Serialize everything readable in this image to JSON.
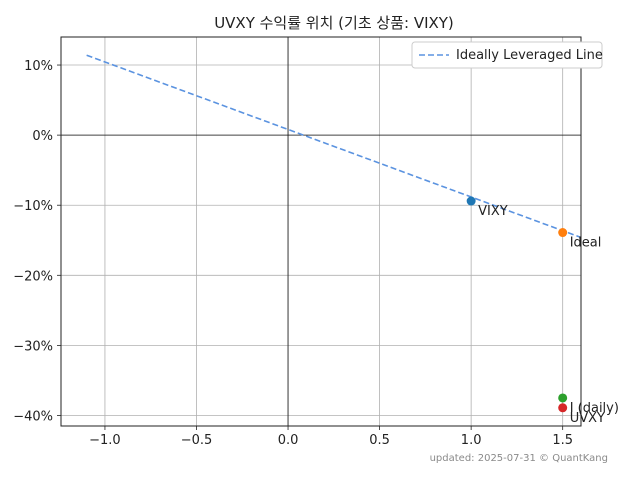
{
  "chart_data": {
    "type": "scatter",
    "title": "UVXY 수익률 위치 (기초 상품: VIXY)",
    "xlabel": "",
    "ylabel": "",
    "xlim": [
      -1.24,
      1.6
    ],
    "ylim": [
      -41.5,
      14
    ],
    "x_ticks": [
      -1.0,
      -0.5,
      0.0,
      0.5,
      1.0,
      1.5
    ],
    "x_tick_labels": [
      "−1.0",
      "−0.5",
      "0.0",
      "0.5",
      "1.0",
      "1.5"
    ],
    "y_ticks": [
      10,
      0,
      -10,
      -20,
      -30,
      -40
    ],
    "y_tick_labels": [
      "10%",
      "0%",
      "−10%",
      "−20%",
      "−30%",
      "−40%"
    ],
    "grid": true,
    "legend_position": "top-right",
    "line": {
      "name": "Ideally Leveraged Line",
      "style": "dashed",
      "color": "#5b93e0",
      "x": [
        -1.1,
        1.6
      ],
      "y": [
        11.4,
        -14.6
      ]
    },
    "points": [
      {
        "label": "VIXY",
        "x": 1.0,
        "y": -9.4,
        "color": "#1f77b4"
      },
      {
        "label": "Ideal",
        "x": 1.5,
        "y": -13.9,
        "color": "#ff7f0e"
      },
      {
        "label": "I (daily)",
        "x": 1.5,
        "y": -37.5,
        "color": "#2ca02c"
      },
      {
        "label": "UVXY",
        "x": 1.5,
        "y": -38.9,
        "color": "#d62728"
      }
    ]
  },
  "footnote": "updated: 2025-07-31 © QuantKang"
}
